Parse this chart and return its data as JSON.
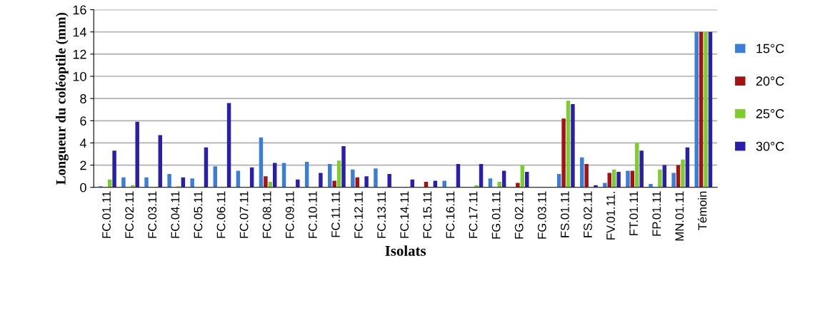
{
  "chart_data": {
    "type": "bar",
    "xlabel": "Isolats",
    "ylabel": "Longueur du coléoptile (mm)",
    "categories": [
      "FC.01.11",
      "FC.02.11",
      "FC.03.11",
      "FC.04.11",
      "FC.05.11",
      "FC.06.11",
      "FC.07.11",
      "FC.08.11",
      "FC.09.11",
      "FC.10.11",
      "FC.11.11",
      "FC.12.11",
      "FC.13.11",
      "FC.14.11",
      "FC.15.11",
      "FC.16.11",
      "FC.17.11",
      "FG.01.11",
      "FG.02.11",
      "FG.03.11",
      "FS.01.11",
      "FS.02.11",
      "FV.01.11.",
      "FT.01.11",
      "FP.01.11",
      "MN.01.11",
      "Témoin"
    ],
    "series": [
      {
        "name": "15°C",
        "color": "#3a7fd5",
        "values": [
          0.1,
          0.9,
          0.9,
          1.2,
          0.8,
          1.9,
          1.5,
          4.5,
          2.2,
          2.3,
          2.1,
          1.6,
          1.7,
          0,
          0,
          0.6,
          0,
          0.8,
          0,
          0,
          1.2,
          2.7,
          0.4,
          1.5,
          0.3,
          1.3,
          14
        ]
      },
      {
        "name": "20°C",
        "color": "#a01414",
        "values": [
          0,
          0,
          0,
          0,
          0,
          0,
          0,
          1.0,
          0,
          0,
          0.6,
          0.9,
          0,
          0,
          0.5,
          0,
          0,
          0,
          0.4,
          0,
          6.2,
          2.1,
          1.3,
          1.5,
          0,
          2.0,
          14
        ]
      },
      {
        "name": "25°C",
        "color": "#7fcc2e",
        "values": [
          0.7,
          0.2,
          0,
          0.1,
          0,
          0,
          0,
          0.5,
          0,
          0,
          2.4,
          0,
          0,
          0,
          0,
          0,
          0.2,
          0.5,
          2.0,
          0,
          7.8,
          0,
          1.6,
          4.0,
          1.6,
          2.5,
          14
        ]
      },
      {
        "name": "30°C",
        "color": "#2a1fa8",
        "values": [
          3.3,
          5.9,
          4.7,
          0.9,
          3.6,
          7.6,
          1.8,
          2.2,
          0.7,
          1.3,
          3.7,
          1.0,
          1.2,
          0.7,
          0.6,
          2.1,
          2.1,
          1.5,
          1.4,
          0,
          7.5,
          0.2,
          1.4,
          3.3,
          2.0,
          3.6,
          14
        ]
      }
    ],
    "ylim": [
      0,
      16
    ],
    "yticks": [
      0,
      2,
      4,
      6,
      8,
      10,
      12,
      14,
      16
    ],
    "grid": "y",
    "legend": "right"
  }
}
